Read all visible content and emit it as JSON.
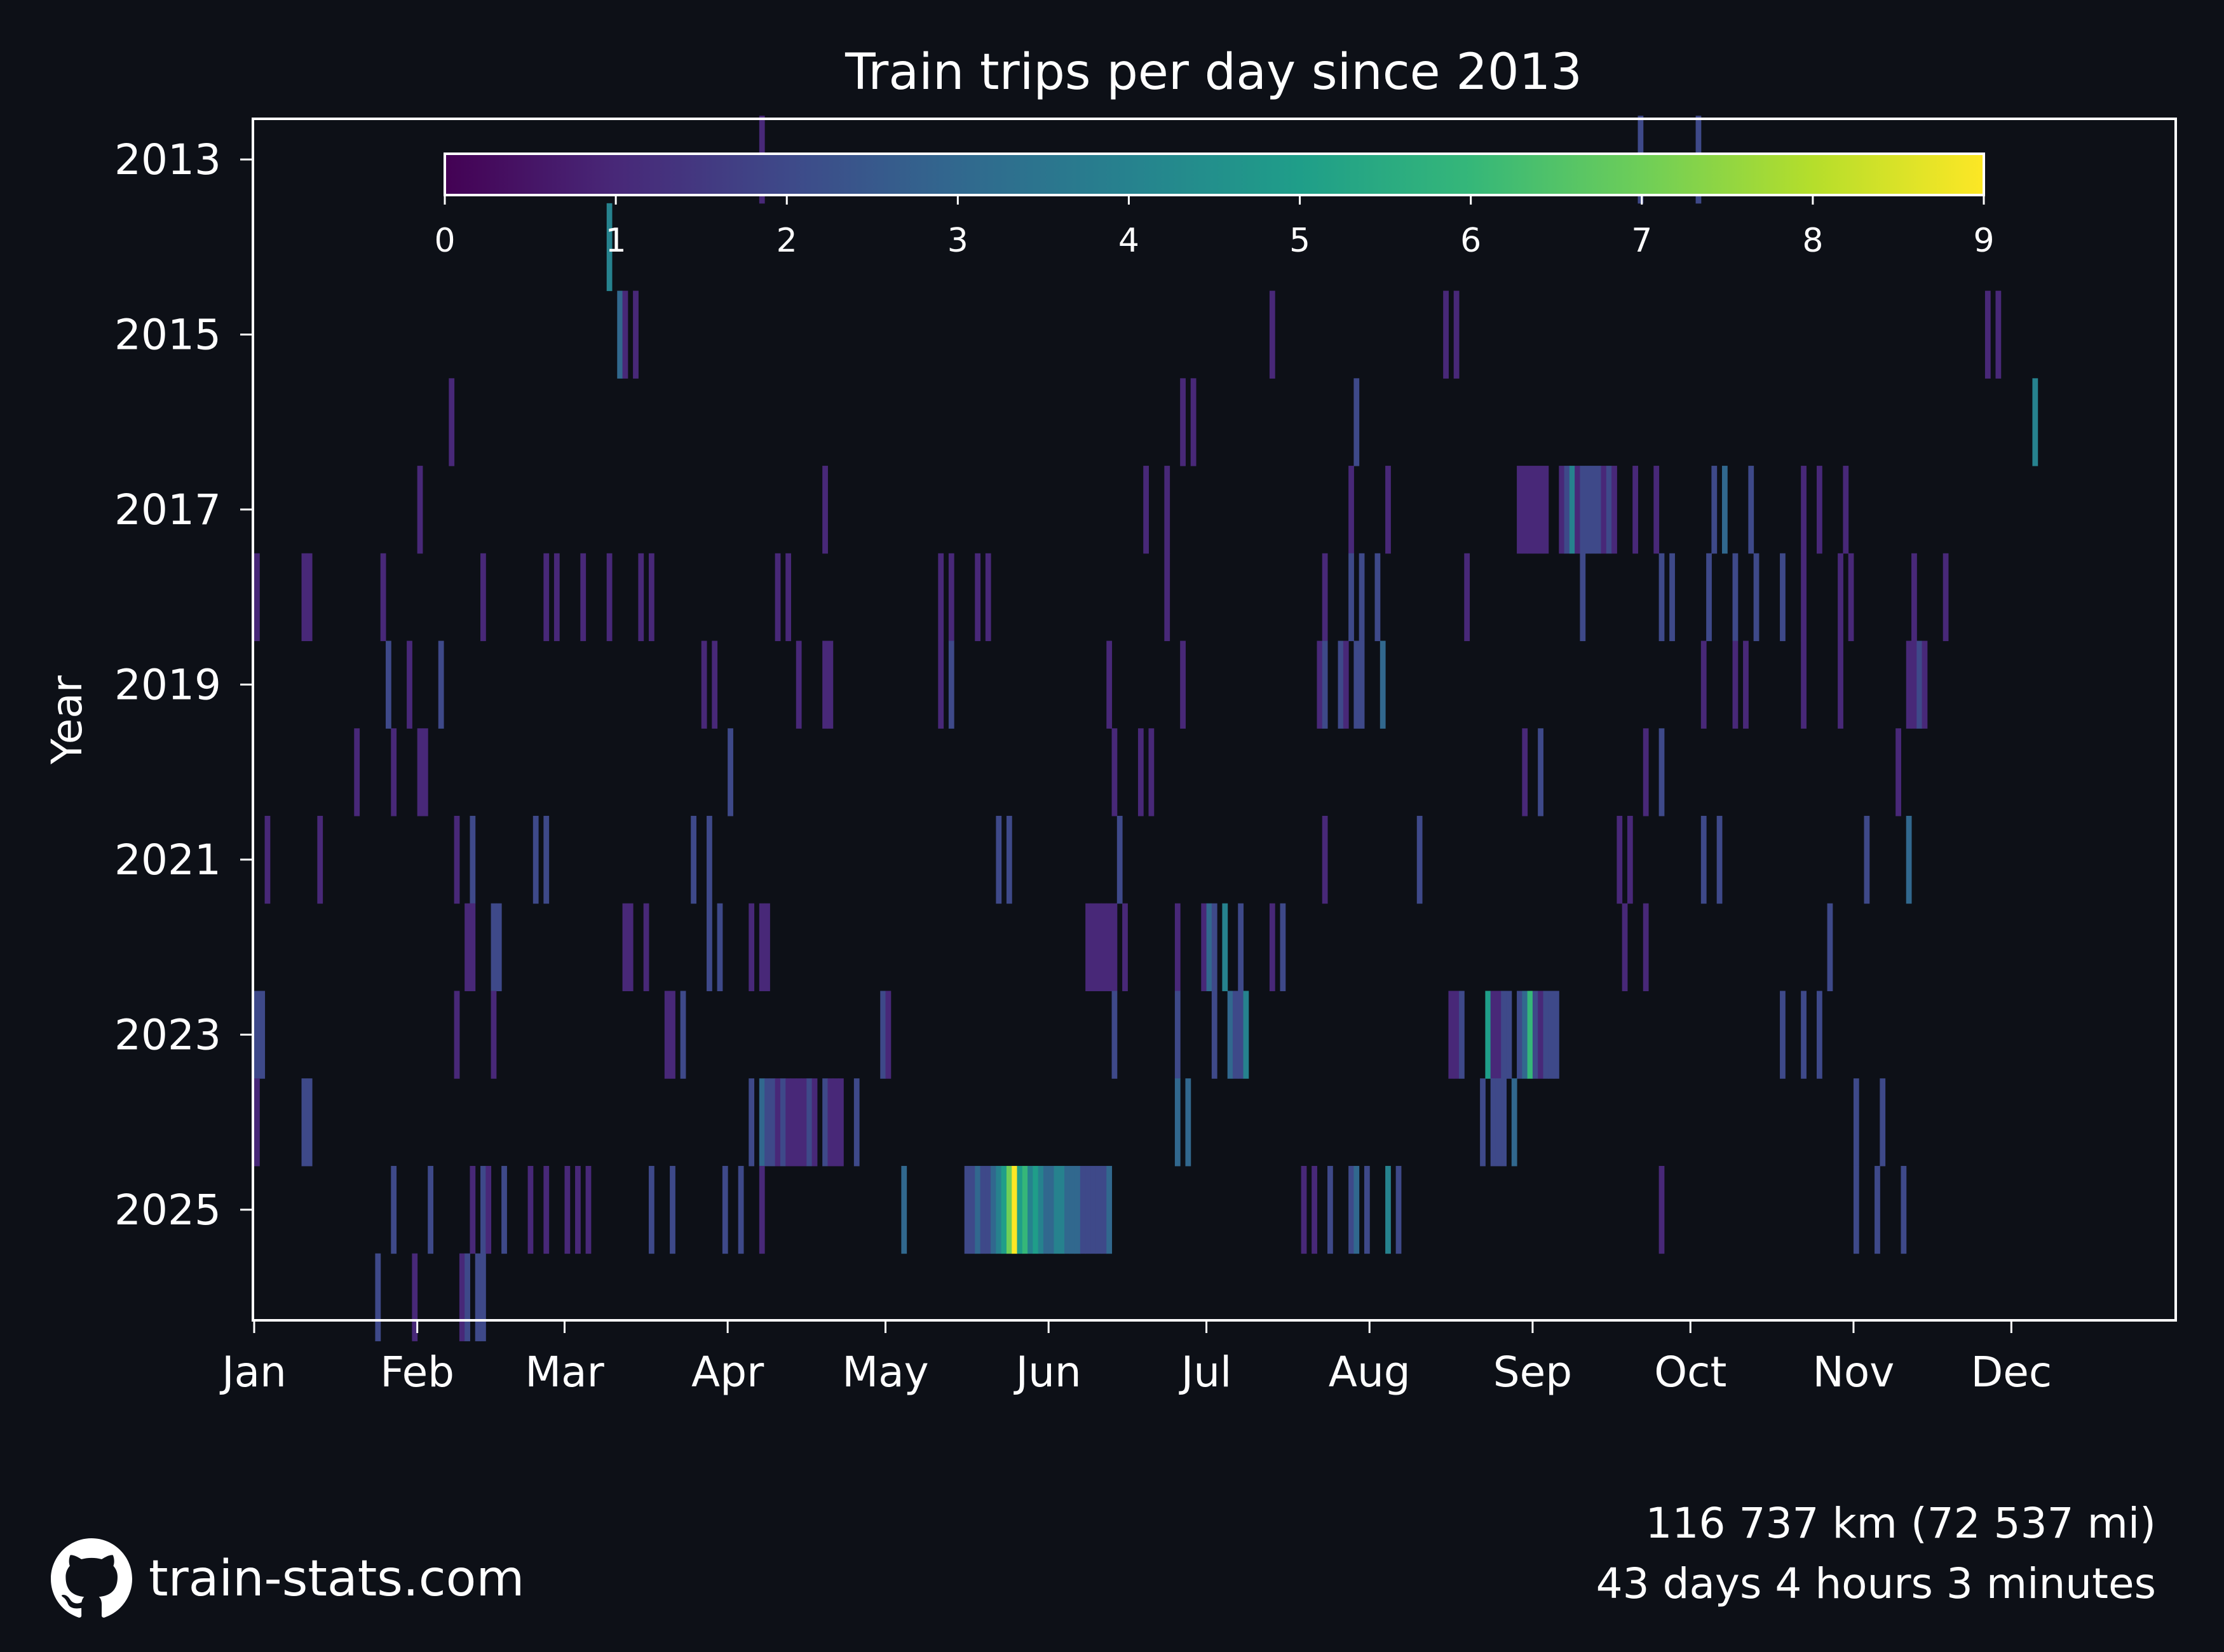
{
  "colors": {
    "background": "#0d1017",
    "text": "#ffffff",
    "colormap": "viridis",
    "colormap_stops": [
      "#440154",
      "#482878",
      "#3e4989",
      "#31688e",
      "#26828e",
      "#1f9e89",
      "#35b779",
      "#6ece58",
      "#b5de2b",
      "#fde725"
    ]
  },
  "footer": {
    "brand_icon": "github-icon",
    "brand": "train-stats.com",
    "distance": "116 737 km (72 537 mi)",
    "duration": "43 days 4 hours 3 minutes"
  },
  "chart_data": {
    "type": "heatmap",
    "title": "Train trips per day since 2013",
    "xlabel": "",
    "ylabel": "Year",
    "x_ticks": [
      "Jan",
      "Feb",
      "Mar",
      "Apr",
      "May",
      "Jun",
      "Jul",
      "Aug",
      "Sep",
      "Oct",
      "Nov",
      "Dec"
    ],
    "y_ticks": [
      "2013",
      "2015",
      "2017",
      "2019",
      "2021",
      "2023",
      "2025"
    ],
    "years": [
      2013,
      2014,
      2015,
      2016,
      2017,
      2018,
      2019,
      2020,
      2021,
      2022,
      2023,
      2024,
      2025,
      2026
    ],
    "colorbar": {
      "min": 0,
      "max": 9,
      "ticks": [
        "0",
        "1",
        "2",
        "3",
        "4",
        "5",
        "6",
        "7",
        "8",
        "9"
      ],
      "placement": "top"
    },
    "cells": {
      "2013": [
        [
          96,
          1
        ],
        [
          263,
          2
        ],
        [
          274,
          2
        ]
      ],
      "2014": [
        [
          67,
          4
        ]
      ],
      "2015": [
        [
          69,
          3
        ],
        [
          70,
          1
        ],
        [
          72,
          1
        ],
        [
          193,
          1
        ],
        [
          226,
          1
        ],
        [
          228,
          1
        ],
        [
          329,
          1
        ],
        [
          331,
          1
        ]
      ],
      "2016": [
        [
          37,
          1
        ],
        [
          176,
          1
        ],
        [
          178,
          1
        ],
        [
          209,
          2
        ],
        [
          338,
          4
        ]
      ],
      "2017": [
        [
          31,
          1
        ],
        [
          108,
          1
        ],
        [
          169,
          1
        ],
        [
          173,
          1
        ],
        [
          208,
          1
        ],
        [
          215,
          1
        ],
        [
          240,
          1
        ],
        [
          241,
          1
        ],
        [
          242,
          1
        ],
        [
          243,
          1
        ],
        [
          244,
          1
        ],
        [
          245,
          1
        ],
        [
          248,
          1
        ],
        [
          249,
          2
        ],
        [
          250,
          4
        ],
        [
          251,
          1
        ],
        [
          252,
          2
        ],
        [
          253,
          2
        ],
        [
          254,
          2
        ],
        [
          255,
          2
        ],
        [
          256,
          1
        ],
        [
          257,
          2
        ],
        [
          258,
          1
        ],
        [
          262,
          1
        ],
        [
          266,
          1
        ],
        [
          277,
          2
        ],
        [
          279,
          3
        ],
        [
          284,
          2
        ],
        [
          294,
          1
        ],
        [
          297,
          1
        ],
        [
          302,
          1
        ]
      ],
      "2018": [
        [
          0,
          1
        ],
        [
          9,
          1
        ],
        [
          10,
          1
        ],
        [
          24,
          1
        ],
        [
          43,
          1
        ],
        [
          55,
          1
        ],
        [
          57,
          1
        ],
        [
          62,
          1
        ],
        [
          67,
          1
        ],
        [
          73,
          1
        ],
        [
          75,
          1
        ],
        [
          99,
          1
        ],
        [
          101,
          1
        ],
        [
          130,
          1
        ],
        [
          132,
          1
        ],
        [
          137,
          1
        ],
        [
          139,
          1
        ],
        [
          173,
          1
        ],
        [
          203,
          1
        ],
        [
          208,
          2
        ],
        [
          210,
          2
        ],
        [
          213,
          2
        ],
        [
          230,
          1
        ],
        [
          252,
          2
        ],
        [
          267,
          2
        ],
        [
          269,
          2
        ],
        [
          276,
          2
        ],
        [
          281,
          2
        ],
        [
          285,
          2
        ],
        [
          290,
          2
        ],
        [
          294,
          1
        ],
        [
          301,
          1
        ],
        [
          303,
          1
        ],
        [
          315,
          1
        ],
        [
          321,
          1
        ]
      ],
      "2019": [
        [
          25,
          2
        ],
        [
          29,
          1
        ],
        [
          35,
          2
        ],
        [
          85,
          1
        ],
        [
          87,
          1
        ],
        [
          103,
          1
        ],
        [
          108,
          1
        ],
        [
          109,
          1
        ],
        [
          130,
          1
        ],
        [
          132,
          2
        ],
        [
          162,
          1
        ],
        [
          176,
          1
        ],
        [
          202,
          1
        ],
        [
          203,
          2
        ],
        [
          206,
          2
        ],
        [
          207,
          1
        ],
        [
          209,
          2
        ],
        [
          210,
          2
        ],
        [
          214,
          3
        ],
        [
          275,
          1
        ],
        [
          281,
          1
        ],
        [
          283,
          1
        ],
        [
          294,
          1
        ],
        [
          301,
          1
        ],
        [
          314,
          1
        ],
        [
          315,
          1
        ],
        [
          316,
          2
        ],
        [
          317,
          1
        ]
      ],
      "2020": [
        [
          19,
          1
        ],
        [
          26,
          1
        ],
        [
          31,
          1
        ],
        [
          32,
          1
        ],
        [
          90,
          2
        ],
        [
          163,
          1
        ],
        [
          168,
          1
        ],
        [
          170,
          1
        ],
        [
          241,
          1
        ],
        [
          244,
          2
        ],
        [
          264,
          1
        ],
        [
          267,
          2
        ],
        [
          312,
          1
        ]
      ],
      "2021": [
        [
          2,
          1
        ],
        [
          12,
          1
        ],
        [
          38,
          1
        ],
        [
          41,
          2
        ],
        [
          53,
          2
        ],
        [
          55,
          2
        ],
        [
          83,
          2
        ],
        [
          86,
          2
        ],
        [
          141,
          2
        ],
        [
          143,
          2
        ],
        [
          164,
          2
        ],
        [
          203,
          1
        ],
        [
          221,
          2
        ],
        [
          259,
          1
        ],
        [
          261,
          1
        ],
        [
          275,
          2
        ],
        [
          278,
          2
        ],
        [
          306,
          2
        ],
        [
          314,
          3
        ]
      ],
      "2022": [
        [
          40,
          1
        ],
        [
          41,
          1
        ],
        [
          45,
          2
        ],
        [
          46,
          2
        ],
        [
          70,
          1
        ],
        [
          71,
          1
        ],
        [
          74,
          1
        ],
        [
          86,
          2
        ],
        [
          88,
          2
        ],
        [
          94,
          1
        ],
        [
          96,
          1
        ],
        [
          97,
          1
        ],
        [
          158,
          1
        ],
        [
          159,
          1
        ],
        [
          160,
          1
        ],
        [
          161,
          1
        ],
        [
          162,
          1
        ],
        [
          163,
          1
        ],
        [
          165,
          1
        ],
        [
          175,
          1
        ],
        [
          180,
          1
        ],
        [
          181,
          3
        ],
        [
          182,
          2
        ],
        [
          184,
          4
        ],
        [
          187,
          2
        ],
        [
          193,
          1
        ],
        [
          195,
          2
        ],
        [
          260,
          1
        ],
        [
          264,
          1
        ],
        [
          299,
          2
        ]
      ],
      "2023": [
        [
          0,
          2
        ],
        [
          1,
          2
        ],
        [
          38,
          1
        ],
        [
          45,
          1
        ],
        [
          78,
          1
        ],
        [
          79,
          1
        ],
        [
          81,
          2
        ],
        [
          119,
          2
        ],
        [
          120,
          1
        ],
        [
          163,
          2
        ],
        [
          175,
          2
        ],
        [
          182,
          2
        ],
        [
          185,
          3
        ],
        [
          186,
          2
        ],
        [
          187,
          2
        ],
        [
          188,
          4
        ],
        [
          227,
          1
        ],
        [
          228,
          1
        ],
        [
          229,
          2
        ],
        [
          234,
          5
        ],
        [
          235,
          1
        ],
        [
          236,
          1
        ],
        [
          237,
          2
        ],
        [
          238,
          2
        ],
        [
          240,
          2
        ],
        [
          241,
          3
        ],
        [
          242,
          6
        ],
        [
          243,
          2
        ],
        [
          244,
          1
        ],
        [
          245,
          2
        ],
        [
          246,
          2
        ],
        [
          247,
          2
        ],
        [
          290,
          2
        ],
        [
          294,
          2
        ],
        [
          297,
          2
        ]
      ],
      "2024": [
        [
          0,
          1
        ],
        [
          9,
          2
        ],
        [
          10,
          2
        ],
        [
          94,
          2
        ],
        [
          96,
          3
        ],
        [
          97,
          2
        ],
        [
          98,
          2
        ],
        [
          99,
          1
        ],
        [
          100,
          2
        ],
        [
          101,
          1
        ],
        [
          102,
          1
        ],
        [
          103,
          1
        ],
        [
          104,
          1
        ],
        [
          105,
          2
        ],
        [
          106,
          1
        ],
        [
          108,
          2
        ],
        [
          109,
          1
        ],
        [
          110,
          1
        ],
        [
          111,
          1
        ],
        [
          114,
          2
        ],
        [
          175,
          3
        ],
        [
          177,
          3
        ],
        [
          233,
          2
        ],
        [
          235,
          2
        ],
        [
          236,
          2
        ],
        [
          237,
          2
        ],
        [
          239,
          3
        ],
        [
          304,
          2
        ],
        [
          309,
          2
        ]
      ],
      "2025": [
        [
          26,
          2
        ],
        [
          33,
          2
        ],
        [
          41,
          1
        ],
        [
          43,
          2
        ],
        [
          44,
          1
        ],
        [
          47,
          2
        ],
        [
          52,
          1
        ],
        [
          55,
          1
        ],
        [
          59,
          1
        ],
        [
          61,
          1
        ],
        [
          63,
          1
        ],
        [
          75,
          2
        ],
        [
          79,
          2
        ],
        [
          89,
          2
        ],
        [
          92,
          2
        ],
        [
          96,
          1
        ],
        [
          123,
          3
        ],
        [
          135,
          2
        ],
        [
          136,
          2
        ],
        [
          137,
          3
        ],
        [
          138,
          2
        ],
        [
          139,
          2
        ],
        [
          140,
          3
        ],
        [
          141,
          4
        ],
        [
          142,
          5
        ],
        [
          143,
          7
        ],
        [
          144,
          9
        ],
        [
          145,
          5
        ],
        [
          146,
          6
        ],
        [
          147,
          4
        ],
        [
          148,
          5
        ],
        [
          149,
          4
        ],
        [
          150,
          3
        ],
        [
          151,
          3
        ],
        [
          152,
          4
        ],
        [
          153,
          4
        ],
        [
          154,
          3
        ],
        [
          155,
          3
        ],
        [
          156,
          3
        ],
        [
          157,
          2
        ],
        [
          158,
          2
        ],
        [
          159,
          2
        ],
        [
          160,
          2
        ],
        [
          161,
          2
        ],
        [
          162,
          3
        ],
        [
          199,
          1
        ],
        [
          201,
          1
        ],
        [
          204,
          2
        ],
        [
          208,
          2
        ],
        [
          209,
          3
        ],
        [
          211,
          2
        ],
        [
          215,
          4
        ],
        [
          217,
          2
        ],
        [
          267,
          1
        ],
        [
          304,
          2
        ],
        [
          308,
          2
        ],
        [
          313,
          2
        ]
      ],
      "2026": [
        [
          23,
          2
        ],
        [
          30,
          1
        ],
        [
          39,
          1
        ],
        [
          40,
          2
        ],
        [
          42,
          2
        ],
        [
          43,
          2
        ]
      ]
    }
  }
}
